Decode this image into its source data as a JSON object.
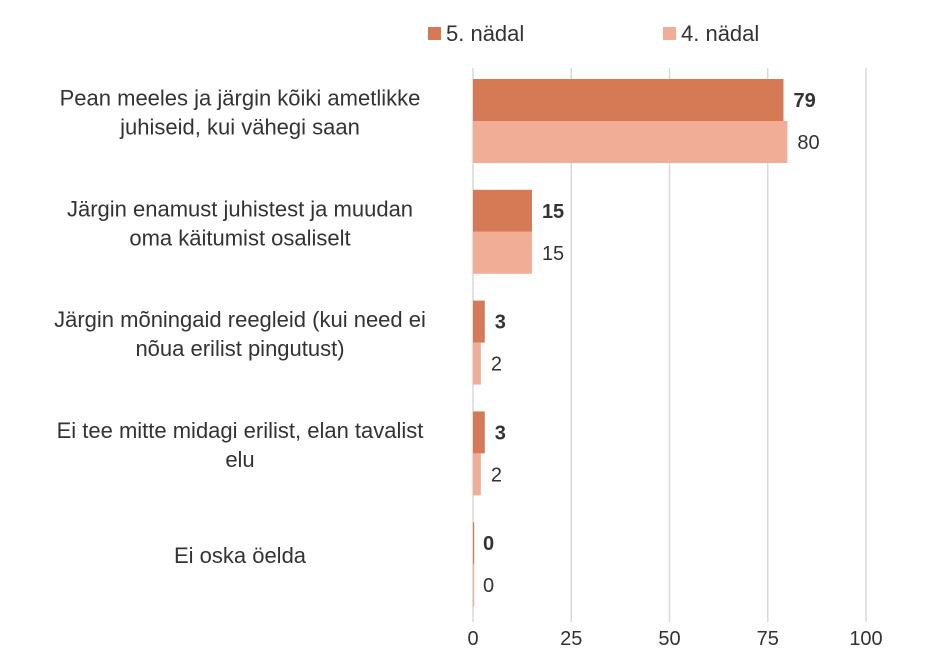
{
  "chart_data": {
    "type": "bar",
    "orientation": "horizontal",
    "categories": [
      [
        "Pean meeles ja järgin kõiki ametlikke",
        "juhiseid, kui vähegi saan"
      ],
      [
        "Järgin enamust juhistest ja muudan",
        "oma käitumist osaliselt"
      ],
      [
        "Järgin mõningaid reegleid (kui need ei",
        "nõua erilist pingutust)"
      ],
      [
        "Ei tee mitte midagi erilist, elan tavalist",
        "elu"
      ],
      [
        "Ei oska öelda"
      ]
    ],
    "series": [
      {
        "name": "5. nädal",
        "values": [
          79,
          15,
          3,
          3,
          0
        ],
        "color": "#d67a56",
        "label_bold": true
      },
      {
        "name": "4. nädal",
        "values": [
          80,
          15,
          2,
          2,
          0
        ],
        "color": "#f2ad96",
        "label_bold": false
      }
    ],
    "xlim": [
      0,
      100
    ],
    "xticks": [
      0,
      25,
      50,
      75,
      100
    ],
    "grid": true,
    "legend_position": "top"
  }
}
